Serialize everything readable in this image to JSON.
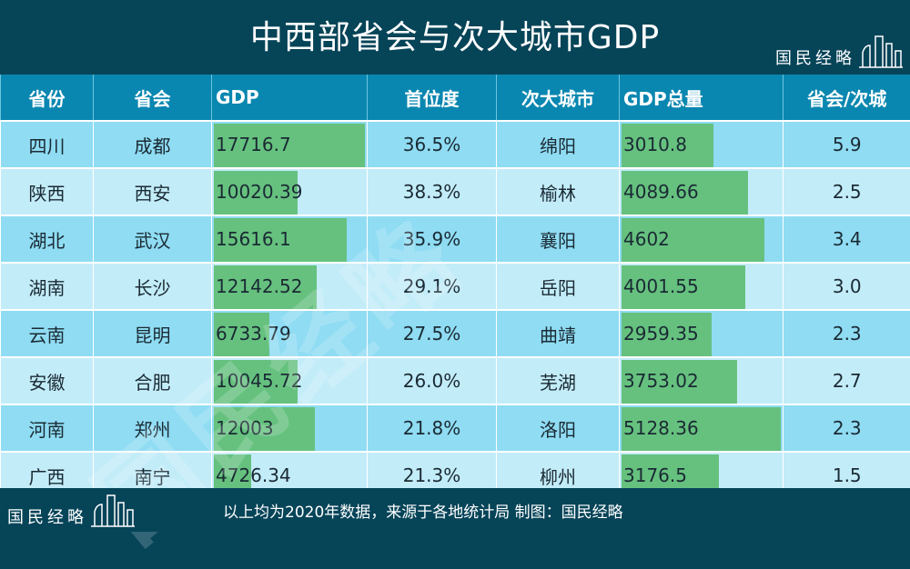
{
  "title": "中西部省会与次大城市GDP",
  "logo_text": "国民经略",
  "watermark": "国民经略",
  "headers": [
    "省份",
    "省会",
    "GDP",
    "首位度",
    "次大城市",
    "GDP总量",
    "省会/次城"
  ],
  "rows": [
    {
      "province": "四川",
      "capital": "成都",
      "gdp": "17716.7",
      "primacy": "36.5%",
      "second_city": "绵阳",
      "second_gdp": "3010.8",
      "ratio": "5.9"
    },
    {
      "province": "陕西",
      "capital": "西安",
      "gdp": "10020.39",
      "primacy": "38.3%",
      "second_city": "榆林",
      "second_gdp": "4089.66",
      "ratio": "2.5"
    },
    {
      "province": "湖北",
      "capital": "武汉",
      "gdp": "15616.1",
      "primacy": "35.9%",
      "second_city": "襄阳",
      "second_gdp": "4602",
      "ratio": "3.4"
    },
    {
      "province": "湖南",
      "capital": "长沙",
      "gdp": "12142.52",
      "primacy": "29.1%",
      "second_city": "岳阳",
      "second_gdp": "4001.55",
      "ratio": "3.0"
    },
    {
      "province": "云南",
      "capital": "昆明",
      "gdp": "6733.79",
      "primacy": "27.5%",
      "second_city": "曲靖",
      "second_gdp": "2959.35",
      "ratio": "2.3"
    },
    {
      "province": "安徽",
      "capital": "合肥",
      "gdp": "10045.72",
      "primacy": "26.0%",
      "second_city": "芜湖",
      "second_gdp": "3753.02",
      "ratio": "2.7"
    },
    {
      "province": "河南",
      "capital": "郑州",
      "gdp": "12003",
      "primacy": "21.8%",
      "second_city": "洛阳",
      "second_gdp": "5128.36",
      "ratio": "2.3"
    },
    {
      "province": "广西",
      "capital": "南宁",
      "gdp": "4726.34",
      "primacy": "21.3%",
      "second_city": "柳州",
      "second_gdp": "3176.5",
      "ratio": "1.5"
    }
  ],
  "footer_note": "以上均为2020年数据，来源于各地统计局  制图：国民经略",
  "colors": {
    "header_bg": "#064458",
    "column_header_bg": "#0a87b0",
    "bar": "#66c17f",
    "row_odd": "#8fdcf3",
    "row_even": "#c3ecf9"
  }
}
